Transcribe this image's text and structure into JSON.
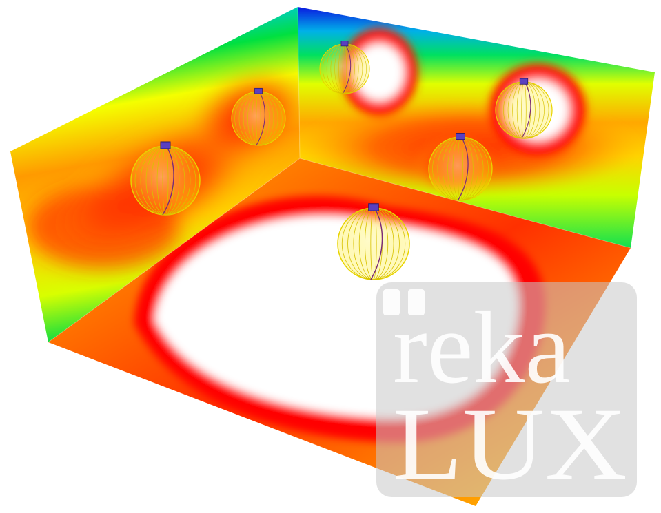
{
  "scene": {
    "description_tag": "luminaire-illuminance-render",
    "colors": {
      "low": "#1020e0",
      "mid_low": "#00dd33",
      "mid": "#f4ff00",
      "mid_high": "#ff9900",
      "high": "#ff0000",
      "peak": "#ffffff",
      "luminaire_body": "#5a3fc0",
      "luminaire_web": "#e8c000"
    },
    "luminaire_count": 6
  },
  "watermark": {
    "line1": "reka",
    "line2": "LUX",
    "background": "#c8c8c8"
  }
}
